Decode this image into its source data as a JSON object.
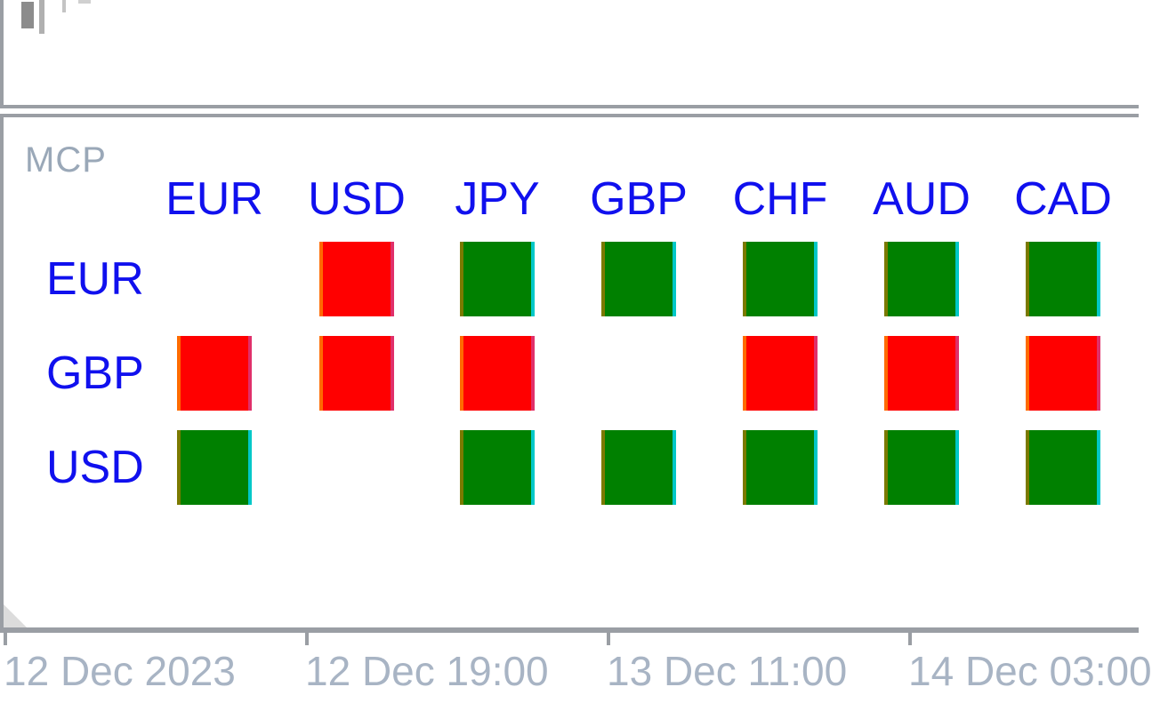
{
  "indicator": {
    "name": "MCP"
  },
  "columns": [
    "EUR",
    "USD",
    "JPY",
    "GBP",
    "CHF",
    "AUD",
    "CAD"
  ],
  "rows": [
    {
      "label": "EUR",
      "cells": [
        "",
        "neg",
        "pos",
        "pos",
        "pos",
        "pos",
        "pos"
      ]
    },
    {
      "label": "GBP",
      "cells": [
        "neg",
        "neg",
        "neg",
        "",
        "neg",
        "neg",
        "neg"
      ]
    },
    {
      "label": "USD",
      "cells": [
        "pos",
        "",
        "pos",
        "pos",
        "pos",
        "pos",
        "pos"
      ]
    }
  ],
  "colors": {
    "positive": "#008000",
    "negative": "#ff0000",
    "label": "#1010ee"
  },
  "time_axis": {
    "labels": [
      "12 Dec 2023",
      "12 Dec 19:00",
      "13 Dec 11:00",
      "14 Dec 03:00"
    ]
  }
}
